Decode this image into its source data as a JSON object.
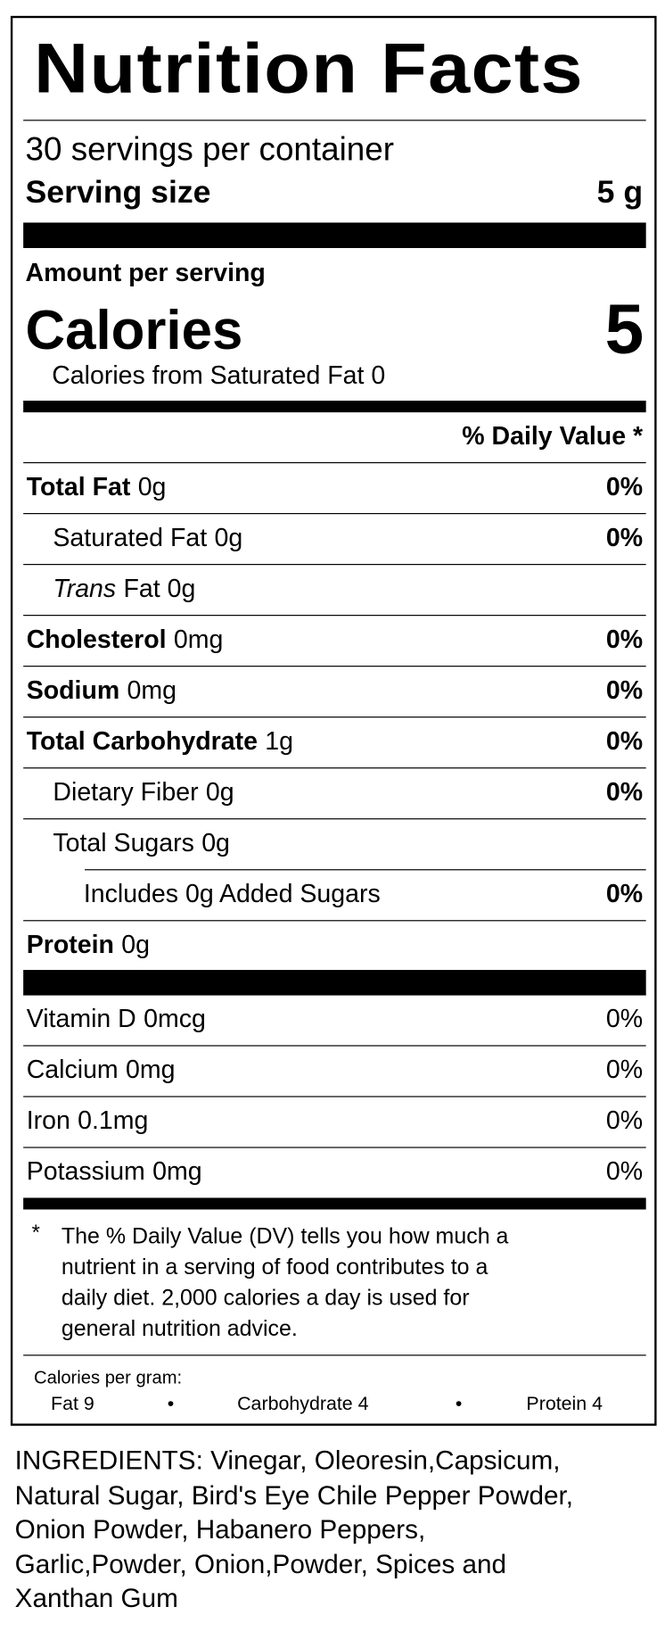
{
  "header": {
    "title": "Nutrition Facts",
    "servings": "30 servings per container",
    "serving_size_label": "Serving size",
    "serving_size_value": "5 g"
  },
  "calories": {
    "amount_label": "Amount per serving",
    "label": "Calories",
    "value": "5",
    "from_sat_fat": "Calories from Saturated Fat 0"
  },
  "dv_header": "% Daily Value *",
  "nutrients": [
    {
      "name": "Total Fat",
      "amount": "0g",
      "dv": "0%",
      "bold": true,
      "indent": 0
    },
    {
      "name": "Saturated Fat",
      "amount": "0g",
      "dv": "0%",
      "bold": false,
      "indent": 1
    },
    {
      "name": "Trans",
      "amount": "Fat 0g",
      "dv": null,
      "bold": false,
      "italic": true,
      "indent": 1
    },
    {
      "name": "Cholesterol",
      "amount": "0mg",
      "dv": "0%",
      "bold": true,
      "indent": 0
    },
    {
      "name": "Sodium",
      "amount": "0mg",
      "dv": "0%",
      "bold": true,
      "indent": 0
    },
    {
      "name": "Total Carbohydrate",
      "amount": "1g",
      "dv": "0%",
      "bold": true,
      "indent": 0
    },
    {
      "name": "Dietary Fiber",
      "amount": "0g",
      "dv": "0%",
      "bold": false,
      "indent": 1
    },
    {
      "name": "Total Sugars",
      "amount": "0g",
      "dv": null,
      "bold": false,
      "indent": 1
    },
    {
      "name": "Includes 0g Added Sugars",
      "amount": null,
      "dv": "0%",
      "bold": false,
      "indent": 2
    },
    {
      "name": "Protein",
      "amount": "0g",
      "dv": null,
      "bold": true,
      "indent": 0
    }
  ],
  "vitamins": [
    {
      "name": "Vitamin D",
      "amount": "0mcg",
      "dv": "0%"
    },
    {
      "name": "Calcium",
      "amount": "0mg",
      "dv": "0%"
    },
    {
      "name": "Iron",
      "amount": "0.1mg",
      "dv": "0%"
    },
    {
      "name": "Potassium",
      "amount": "0mg",
      "dv": "0%"
    }
  ],
  "footnote": {
    "marker": "*",
    "lines": [
      "The % Daily Value (DV) tells you how much a",
      "nutrient in a serving of food contributes to a",
      "daily diet. 2,000 calories a day is used for",
      "general nutrition advice."
    ]
  },
  "calories_per_gram": {
    "label": "Calories per gram:",
    "items": [
      "Fat 9",
      "•",
      "Carbohydrate 4",
      "•",
      "Protein 4"
    ]
  },
  "ingredients": [
    "INGREDIENTS: Vinegar, Oleoresin,Capsicum,",
    "Natural Sugar, Bird's Eye Chile Pepper Powder,",
    "Onion Powder, Habanero Peppers,",
    "Garlic,Powder, Onion,Powder, Spices and",
    "Xanthan Gum"
  ]
}
